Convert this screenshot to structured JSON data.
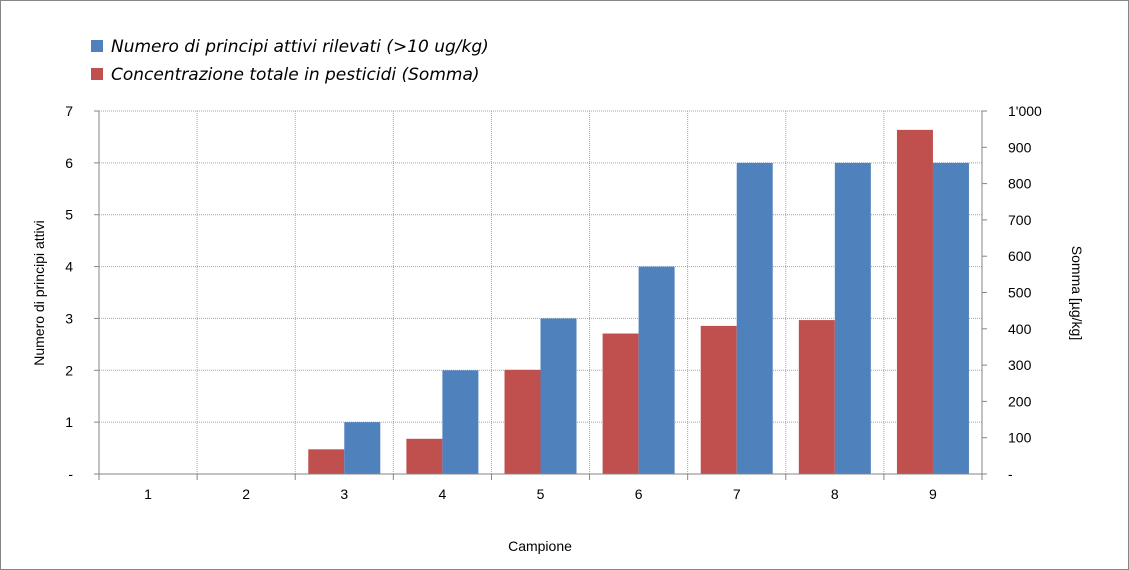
{
  "chart_data": {
    "type": "bar",
    "title": "",
    "categories": [
      "1",
      "2",
      "3",
      "4",
      "5",
      "6",
      "7",
      "8",
      "9"
    ],
    "xlabel": "Campione",
    "ylabel_left": "Numero di principi attivi",
    "ylabel_right": "Somma [µg/kg]",
    "ylim_left": [
      0,
      7
    ],
    "ylim_right": [
      0,
      1000
    ],
    "yticks_left": [
      "-",
      "1",
      "2",
      "3",
      "4",
      "5",
      "6",
      "7"
    ],
    "yticks_right": [
      "-",
      "100",
      "200",
      "300",
      "400",
      "500",
      "600",
      "700",
      "800",
      "900",
      "1'000"
    ],
    "grid": true,
    "legend_position": "top-left",
    "series": [
      {
        "name": "Concentrazione totale in pesticidi (Somma)",
        "axis": "right",
        "color": "#C0504D",
        "values": [
          0,
          0,
          68,
          97,
          287,
          387,
          408,
          424,
          948
        ]
      },
      {
        "name": "Numero di principi attivi rilevati (>10 ug/kg)",
        "axis": "left",
        "color": "#4F81BD",
        "values": [
          0,
          0,
          1,
          2,
          3,
          4,
          6,
          6,
          6
        ]
      }
    ],
    "legend_order": [
      1,
      0
    ]
  }
}
